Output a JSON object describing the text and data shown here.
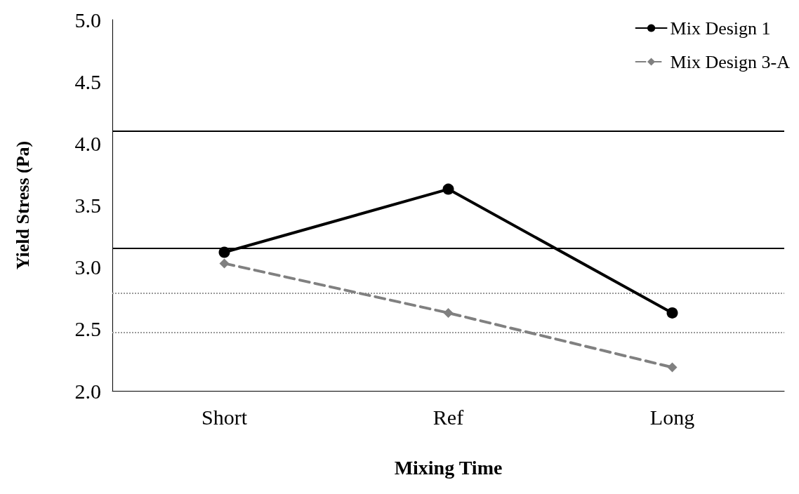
{
  "chart_data": {
    "type": "line",
    "xlabel": "Mixing Time",
    "ylabel": "Yield Stress (Pa)",
    "categories": [
      "Short",
      "Ref",
      "Long"
    ],
    "series": [
      {
        "name": "Mix Design 1",
        "color": "#000000",
        "values": [
          3.12,
          3.63,
          2.63
        ],
        "marker": "circle",
        "line_style": "solid"
      },
      {
        "name": "Mix Design 3-A",
        "color": "#808080",
        "values": [
          3.03,
          2.63,
          2.19
        ],
        "marker": "diamond",
        "line_style": "dashed"
      }
    ],
    "ylim": [
      2.0,
      5.0
    ],
    "yticks": [
      {
        "value": 2.0,
        "label": "2.0"
      },
      {
        "value": 2.5,
        "label": "2.5"
      },
      {
        "value": 3.0,
        "label": "3.0"
      },
      {
        "value": 3.5,
        "label": "3.5"
      },
      {
        "value": 4.0,
        "label": "4.0"
      },
      {
        "value": 4.5,
        "label": "4.5"
      },
      {
        "value": 5.0,
        "label": "5.0"
      }
    ],
    "ref_lines": [
      {
        "axis": "y",
        "value": 4.1,
        "color": "#000000",
        "line_style": "solid"
      },
      {
        "axis": "y",
        "value": 3.15,
        "color": "#000000",
        "line_style": "solid"
      },
      {
        "axis": "y",
        "value": 2.79,
        "color": "#999999",
        "line_style": "dotted"
      },
      {
        "axis": "y",
        "value": 2.47,
        "color": "#999999",
        "line_style": "dotted"
      }
    ],
    "grid": false,
    "legend": "top right"
  }
}
